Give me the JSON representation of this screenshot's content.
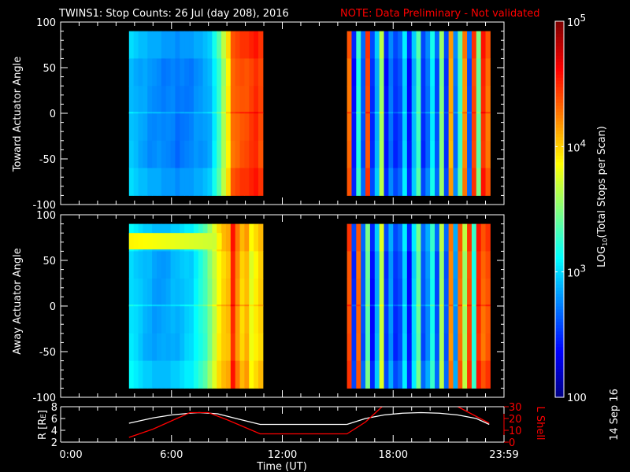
{
  "title": "TWINS1: Stop Counts: 26 Jul (day 208), 2016",
  "note": "NOTE: Data Preliminary - Not validated",
  "date_stamp": "14 Sep 16",
  "colors": {
    "title": "#ffffff",
    "note": "#ff0000",
    "lshell": "#ff0000",
    "r": "#ffffff"
  },
  "chart_data": [
    {
      "type": "heatmap",
      "name": "toward",
      "ylabel": "Toward Actuator Angle",
      "ylim": [
        -100,
        100
      ],
      "yticks": [
        "100",
        "50",
        "0",
        "-50",
        "-100"
      ],
      "angle_range": [
        -90,
        90
      ],
      "blocks": [
        {
          "t_start": 3.7,
          "dt": 0.25,
          "log_counts": [
            2.95,
            2.9,
            2.85,
            2.85,
            2.8,
            2.8,
            2.8,
            2.75,
            2.75,
            2.75,
            2.7,
            2.75,
            2.75,
            2.75,
            2.8,
            2.8,
            2.85,
            2.9,
            3.1,
            3.3,
            3.6,
            3.9,
            4.3,
            4.35,
            4.4,
            4.4,
            4.45,
            4.5,
            4.4
          ]
        },
        {
          "t_start": 15.5,
          "dt": 0.25,
          "log_counts": [
            4.3,
            2.4,
            3.2,
            2.6,
            4.4,
            2.5,
            2.9,
            3.6,
            2.4,
            2.7,
            2.5,
            2.6,
            3.0,
            2.4,
            2.9,
            3.3,
            2.5,
            2.7,
            3.1,
            2.6,
            3.5,
            2.5,
            4.1,
            2.7,
            3.3,
            4.2,
            2.6,
            4.4,
            3.4,
            4.5,
            4.3
          ]
        }
      ]
    },
    {
      "type": "heatmap",
      "name": "away",
      "ylabel": "Away Actuator Angle",
      "ylim": [
        -100,
        100
      ],
      "yticks": [
        "100",
        "50",
        "0",
        "-50",
        "-100"
      ],
      "angle_range": [
        -90,
        90
      ],
      "band": {
        "angle_range": [
          62,
          80
        ],
        "t_range": [
          3.7,
          8.5
        ],
        "log_count": 3.9
      },
      "blocks": [
        {
          "t_start": 3.7,
          "dt": 0.25,
          "log_counts": [
            3.05,
            3.0,
            2.95,
            2.9,
            2.9,
            2.85,
            2.85,
            2.85,
            2.85,
            2.9,
            2.9,
            2.95,
            3.0,
            3.0,
            3.1,
            3.2,
            3.3,
            3.5,
            3.7,
            3.9,
            4.0,
            4.05,
            4.5,
            4.2,
            4.0,
            4.1,
            3.8,
            3.9,
            4.0
          ]
        },
        {
          "t_start": 15.5,
          "dt": 0.25,
          "log_counts": [
            4.4,
            2.5,
            4.3,
            2.6,
            3.4,
            2.4,
            2.9,
            3.7,
            2.5,
            2.8,
            2.5,
            2.6,
            3.0,
            2.4,
            3.0,
            3.4,
            2.6,
            2.8,
            3.2,
            2.6,
            3.6,
            2.6,
            4.2,
            2.8,
            4.3,
            3.6,
            4.4,
            3.2,
            4.5,
            4.3,
            4.4
          ]
        }
      ]
    },
    {
      "type": "line",
      "name": "orbit",
      "ylabel_left": [
        "R [R",
        "E",
        "]"
      ],
      "ylabel_right": "L Shell",
      "ylim_left": [
        2,
        8
      ],
      "ylim_right": [
        0,
        30
      ],
      "yticks_left": [
        "2",
        "4",
        "6",
        "8"
      ],
      "yticks_right": [
        "0",
        "10",
        "20",
        "30"
      ],
      "series": [
        {
          "name": "R",
          "axis": "left",
          "segments": [
            {
              "x": [
                3.7,
                5,
                6,
                7,
                7.5,
                8.5,
                9.5,
                10.8,
                15.5
              ],
              "y": [
                5.2,
                6.1,
                6.6,
                6.9,
                7.0,
                6.8,
                6.0,
                5.0,
                5.0
              ]
            },
            {
              "x": [
                15.5,
                16.5,
                17.5,
                18.5,
                19.5,
                20.5,
                21.5,
                22.5,
                23.2
              ],
              "y": [
                5.0,
                6.0,
                6.6,
                6.9,
                7.0,
                6.9,
                6.6,
                6.0,
                5.0
              ]
            }
          ]
        },
        {
          "name": "L Shell",
          "axis": "right",
          "segments": [
            {
              "x": [
                3.7,
                5,
                6,
                7,
                8,
                9,
                10.8,
                15.5,
                16.5,
                17.4
              ],
              "y": [
                4,
                11,
                18,
                25,
                25,
                19,
                7,
                7,
                17,
                30
              ]
            },
            {
              "x": [
                21.5,
                23.2
              ],
              "y": [
                30,
                16
              ]
            }
          ]
        }
      ]
    }
  ],
  "xaxis": {
    "label": "Time (UT)",
    "range_hours": [
      0,
      24
    ],
    "ticks": [
      {
        "t": 0,
        "label": "0:00"
      },
      {
        "t": 6,
        "label": "6:00"
      },
      {
        "t": 12,
        "label": "12:00"
      },
      {
        "t": 18,
        "label": "18:00"
      },
      {
        "t": 24,
        "label": "23:59"
      }
    ]
  },
  "colorbar": {
    "label_pre": "LOG",
    "label_sub": "10",
    "label_post": "(Total Stops per Scan)",
    "log_range": [
      2,
      5
    ],
    "ticks": [
      {
        "base": "10",
        "exp": "5",
        "v": 5
      },
      {
        "base": "10",
        "exp": "4",
        "v": 4
      },
      {
        "base": "10",
        "exp": "3",
        "v": 3
      }
    ],
    "min_label": "100"
  }
}
